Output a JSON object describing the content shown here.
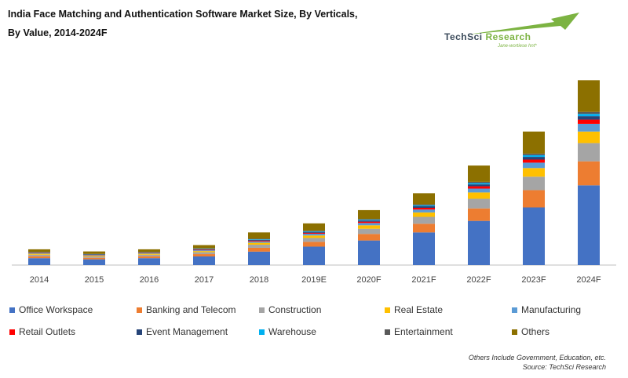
{
  "header": {
    "title_line1": "India Face Matching and Authentication Software Market Size, By Verticals,",
    "title_line2": "By Value, 2014-2024F"
  },
  "logo": {
    "name_part1": "TechSci",
    "name_part2": " Research",
    "tagline": "Jane-wortiese hnt*"
  },
  "notes": {
    "line1": "Others Include Government, Education, etc.",
    "line2": "Source: TechSci Research"
  },
  "colors": {
    "office": "#4472c4",
    "banking": "#ed7d31",
    "construction": "#a5a5a5",
    "realestate": "#ffc000",
    "manufacturing": "#5b9bd5",
    "retail": "#ff0000",
    "event": "#264478",
    "warehouse": "#00b0f0",
    "entertainment": "#595959",
    "others": "#8c7000"
  },
  "chart_data": {
    "type": "bar",
    "stacked": true,
    "title": "India Face Matching and Authentication Software Market Size, By Verticals, By Value, 2014-2024F",
    "xlabel": "",
    "ylabel": "",
    "grid": false,
    "legend_position": "bottom",
    "categories": [
      "2014",
      "2015",
      "2016",
      "2017",
      "2018",
      "2019E",
      "2020F",
      "2021F",
      "2022F",
      "2023F",
      "2024F"
    ],
    "ylim": [
      0,
      100
    ],
    "series": [
      {
        "name": "Office Workspace",
        "color": "#4472c4",
        "values": [
          3.6,
          3.0,
          3.6,
          4.5,
          7.0,
          9.6,
          12.8,
          17.0,
          23.0,
          30.0,
          41.5
        ]
      },
      {
        "name": "Banking and Telecom",
        "color": "#ed7d31",
        "values": [
          1.0,
          0.8,
          1.0,
          1.2,
          2.0,
          2.5,
          3.4,
          4.5,
          6.5,
          9.0,
          12.5
        ]
      },
      {
        "name": "Construction",
        "color": "#a5a5a5",
        "values": [
          0.8,
          0.7,
          0.8,
          1.0,
          1.6,
          2.0,
          2.7,
          3.6,
          5.0,
          7.0,
          9.5
        ]
      },
      {
        "name": "Real Estate",
        "color": "#ffc000",
        "values": [
          0.5,
          0.4,
          0.5,
          0.6,
          1.0,
          1.3,
          1.8,
          2.3,
          3.3,
          4.5,
          6.0
        ]
      },
      {
        "name": "Manufacturing",
        "color": "#5b9bd5",
        "values": [
          0.3,
          0.3,
          0.3,
          0.4,
          0.7,
          0.9,
          1.2,
          1.5,
          2.0,
          2.8,
          4.0
        ]
      },
      {
        "name": "Retail Outlets",
        "color": "#ff0000",
        "values": [
          0.2,
          0.2,
          0.2,
          0.3,
          0.4,
          0.5,
          0.7,
          0.9,
          1.2,
          1.6,
          2.2
        ]
      },
      {
        "name": "Event Management",
        "color": "#264478",
        "values": [
          0.2,
          0.2,
          0.2,
          0.3,
          0.4,
          0.5,
          0.6,
          0.8,
          1.0,
          1.4,
          1.8
        ]
      },
      {
        "name": "Warehouse",
        "color": "#00b0f0",
        "values": [
          0.1,
          0.1,
          0.1,
          0.2,
          0.3,
          0.3,
          0.4,
          0.5,
          0.7,
          0.9,
          1.2
        ]
      },
      {
        "name": "Entertainment",
        "color": "#595959",
        "values": [
          0.1,
          0.1,
          0.1,
          0.2,
          0.3,
          0.3,
          0.4,
          0.5,
          0.6,
          0.8,
          1.0
        ]
      },
      {
        "name": "Others",
        "color": "#8c7000",
        "values": [
          1.4,
          1.3,
          1.4,
          1.7,
          3.3,
          3.8,
          4.6,
          5.8,
          8.5,
          11.5,
          16.5
        ]
      }
    ]
  }
}
